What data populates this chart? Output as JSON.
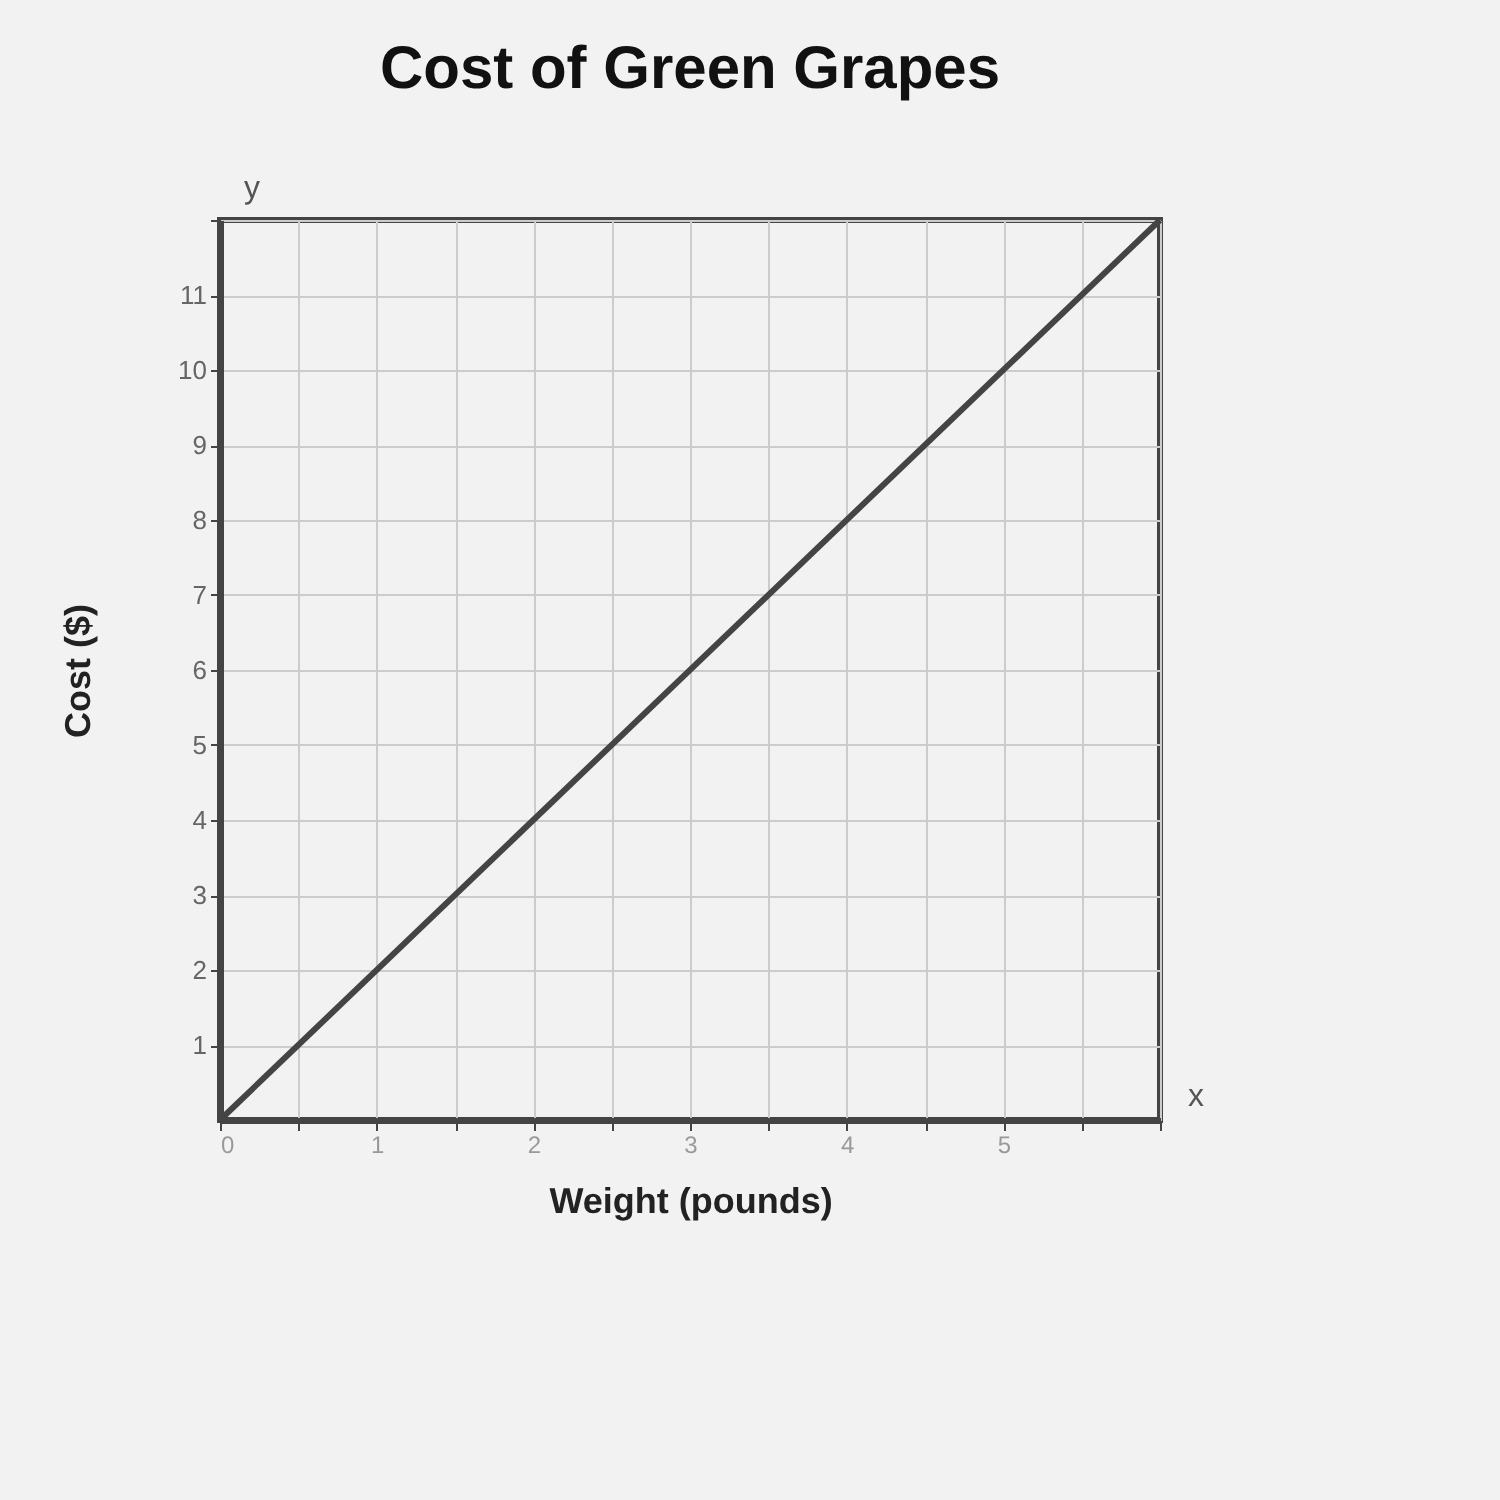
{
  "chart_data": {
    "type": "line",
    "title": "Cost of Green Grapes",
    "xlabel": "Weight (pounds)",
    "ylabel": "Cost ($)",
    "x": [
      0,
      6
    ],
    "series": [
      {
        "color": "#444444",
        "values": [
          0,
          12
        ]
      }
    ],
    "xlim": [
      0,
      6
    ],
    "ylim": [
      0,
      12
    ],
    "xticks": [
      0,
      {
        "value": 0.5,
        "label": null
      },
      1,
      {
        "value": 1.5,
        "label": null
      },
      2,
      {
        "value": 2.5,
        "label": null
      },
      3,
      {
        "value": 3.5,
        "label": null
      },
      4,
      {
        "value": 4.5,
        "label": null
      },
      5,
      {
        "value": 5.5,
        "label": null
      },
      {
        "value": 6,
        "label": null
      }
    ],
    "yticks": [
      1,
      2,
      3,
      4,
      5,
      6,
      7,
      8,
      9,
      10,
      11,
      {
        "value": 12,
        "label": null
      }
    ],
    "grid": true,
    "legend": false,
    "marker": "none",
    "line_style": "solid",
    "annotations": [
      "y",
      "x"
    ]
  }
}
